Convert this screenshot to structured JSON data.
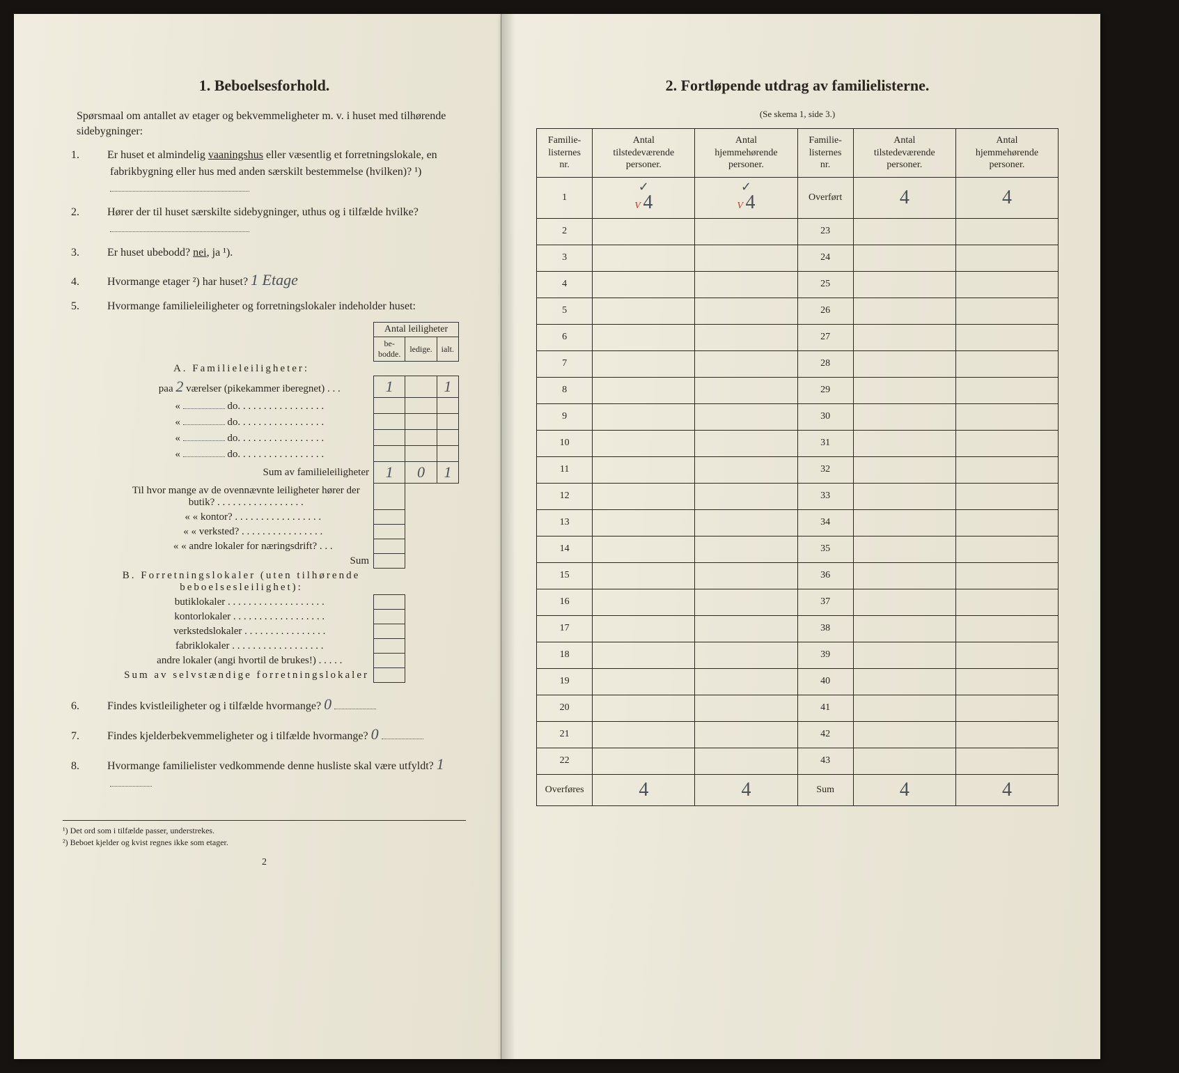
{
  "left": {
    "title": "1.   Beboelsesforhold.",
    "intro": "Spørsmaal om antallet av etager og bekvemmeligheter m. v. i huset med tilhørende sidebygninger:",
    "q1": "Er huset et almindelig vaaningshus eller væsentlig et forretningslokale, en fabrikbygning eller hus med anden særskilt bestemmelse (hvilken)? ¹)",
    "q1_underlined": "vaaningshus",
    "q2": "Hører der til huset særskilte sidebygninger, uthus og i tilfælde hvilke?",
    "q3_pre": "Er huset ubebodd?  ",
    "q3_nei": "nei",
    "q3_rest": ",  ja ¹).",
    "q4_pre": "Hvormange etager ²) har huset? ",
    "q4_hand": "1 Etage",
    "q5": "Hvormange familieleiligheter og forretningslokaler indeholder huset:",
    "tableA": {
      "header_top": "Antal leiligheter",
      "cols": [
        "be-\nbodde.",
        "ledige.",
        "ialt."
      ],
      "titleA": "A. Familieleiligheter:",
      "rowA1_label": "paa",
      "rowA1_hand": "2",
      "rowA1_rest": "værelser (pikekammer iberegnet) . . .",
      "rowA1_vals": [
        "1",
        "",
        "1"
      ],
      "do_rows": [
        "do.",
        "do.",
        "do.",
        "do."
      ],
      "sumA_label": "Sum av familieleiligheter",
      "sumA_vals": [
        "1",
        "0",
        "1"
      ],
      "between": [
        "Til hvor mange av de ovennævnte leiligheter hører der butik? . . . . . . . . . . . . . . . . .",
        "«     «   kontor? . . . . . . . . . . . . . . . . .",
        "«     «   verksted? . . . . . . . . . . . . . . . .",
        "«     «   andre lokaler for næringsdrift? . . .",
        "Sum"
      ],
      "titleB": "B. Forretningslokaler (uten tilhørende beboelsesleilighet):",
      "rowsB": [
        "butiklokaler . . . . . . . . . . . . . . . . . . .",
        "kontorlokaler . . . . . . . . . . . . . . . . . .",
        "verkstedslokaler . . . . . . . . . . . . . . . .",
        "fabriklokaler . . . . . . . . . . . . . . . . . .",
        "andre lokaler (angi hvortil de brukes!) . . . . ."
      ],
      "sumB_label": "Sum av selvstændige forretningslokaler"
    },
    "q6_pre": "Findes kvistleiligheter og i tilfælde hvormange? ",
    "q6_hand": "0",
    "q7_pre": "Findes kjelderbekvemmeligheter og i tilfælde hvormange? ",
    "q7_hand": "0",
    "q8_pre": "Hvormange familielister vedkommende denne husliste skal være utfyldt? ",
    "q8_hand": "1",
    "fn1": "¹) Det ord som i tilfælde passer, understrekes.",
    "fn2": "²) Beboet kjelder og kvist regnes ikke som etager.",
    "pagenum": "2"
  },
  "right": {
    "title": "2.   Fortløpende utdrag av familielisterne.",
    "caption": "(Se skema 1, side 3.)",
    "headers": [
      "Familie-\nlisternes\nnr.",
      "Antal\ntilstedeværende\npersoner.",
      "Antal\nhjemmehørende\npersoner.",
      "Familie-\nlisternes\nnr.",
      "Antal\ntilstedeværende\npersoner.",
      "Antal\nhjemmehørende\npersoner."
    ],
    "left_nums": [
      "1",
      "2",
      "3",
      "4",
      "5",
      "6",
      "7",
      "8",
      "9",
      "10",
      "11",
      "12",
      "13",
      "14",
      "15",
      "16",
      "17",
      "18",
      "19",
      "20",
      "21",
      "22"
    ],
    "right_first_label": "Overført",
    "right_nums": [
      "23",
      "24",
      "25",
      "26",
      "27",
      "28",
      "29",
      "30",
      "31",
      "32",
      "33",
      "34",
      "35",
      "36",
      "37",
      "38",
      "39",
      "40",
      "41",
      "42",
      "43"
    ],
    "row1_check": "✓",
    "row1_v": "V",
    "row1_val": "4",
    "overfort_vals": [
      "4",
      "4"
    ],
    "footer_left": "Overføres",
    "footer_right": "Sum",
    "footer_vals": [
      "4",
      "4",
      "4",
      "4"
    ]
  }
}
